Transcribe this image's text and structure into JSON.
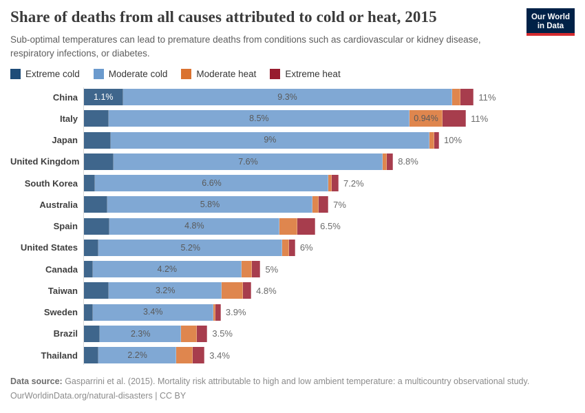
{
  "header": {
    "title": "Share of deaths from all causes attributed to cold or heat, 2015",
    "subtitle": "Sub-optimal temperatures can lead to premature deaths from conditions such as cardiovascular or kidney disease, respiratory infections, or diabetes.",
    "logo": {
      "line1": "Our World",
      "line2": "in Data",
      "bg_color": "#002147",
      "accent_color": "#d42b2f"
    }
  },
  "legend": {
    "items": [
      {
        "label": "Extreme cold",
        "color": "#1e4c78"
      },
      {
        "label": "Moderate cold",
        "color": "#6b9acd"
      },
      {
        "label": "Moderate heat",
        "color": "#da7230"
      },
      {
        "label": "Extreme heat",
        "color": "#981c2e"
      }
    ]
  },
  "chart_data": {
    "type": "bar",
    "orientation": "horizontal",
    "stacked": true,
    "unit": "%",
    "title": "Share of deaths from all causes attributed to cold or heat, 2015",
    "legend_position": "top",
    "grid": false,
    "xlim": [
      0,
      11.5
    ],
    "series_names": [
      "Extreme cold",
      "Moderate cold",
      "Moderate heat",
      "Extreme heat"
    ],
    "series_colors": [
      "#1e4c78",
      "#6b9acd",
      "#da7230",
      "#981c2e"
    ],
    "categories": [
      "China",
      "Italy",
      "Japan",
      "United Kingdom",
      "South Korea",
      "Australia",
      "Spain",
      "United States",
      "Canada",
      "Taiwan",
      "Sweden",
      "Brazil",
      "Thailand"
    ],
    "rows": [
      {
        "country": "China",
        "values": [
          1.1,
          9.3,
          0.25,
          0.37
        ],
        "segment_labels": [
          "1.1%",
          "9.3%",
          "",
          ""
        ],
        "total_label": "11%"
      },
      {
        "country": "Italy",
        "values": [
          0.7,
          8.5,
          0.94,
          0.66
        ],
        "segment_labels": [
          "",
          "8.5%",
          "0.94%",
          ""
        ],
        "total_label": "11%"
      },
      {
        "country": "Japan",
        "values": [
          0.76,
          9.0,
          0.14,
          0.14
        ],
        "segment_labels": [
          "",
          "9%",
          "",
          ""
        ],
        "total_label": "10%"
      },
      {
        "country": "United Kingdom",
        "values": [
          0.84,
          7.6,
          0.12,
          0.18
        ],
        "segment_labels": [
          "",
          "7.6%",
          "",
          ""
        ],
        "total_label": "8.8%"
      },
      {
        "country": "South Korea",
        "values": [
          0.31,
          6.6,
          0.1,
          0.19
        ],
        "segment_labels": [
          "",
          "6.6%",
          "",
          ""
        ],
        "total_label": "7.2%"
      },
      {
        "country": "Australia",
        "values": [
          0.66,
          5.8,
          0.18,
          0.27
        ],
        "segment_labels": [
          "",
          "5.8%",
          "",
          ""
        ],
        "total_label": "7%"
      },
      {
        "country": "Spain",
        "values": [
          0.72,
          4.8,
          0.52,
          0.5
        ],
        "segment_labels": [
          "",
          "4.8%",
          "",
          ""
        ],
        "total_label": "6.5%"
      },
      {
        "country": "United States",
        "values": [
          0.41,
          5.2,
          0.19,
          0.17
        ],
        "segment_labels": [
          "",
          "5.2%",
          "",
          ""
        ],
        "total_label": "6%"
      },
      {
        "country": "Canada",
        "values": [
          0.25,
          4.2,
          0.29,
          0.25
        ],
        "segment_labels": [
          "",
          "4.2%",
          "",
          ""
        ],
        "total_label": "5%"
      },
      {
        "country": "Taiwan",
        "values": [
          0.7,
          3.2,
          0.6,
          0.23
        ],
        "segment_labels": [
          "",
          "3.2%",
          "",
          ""
        ],
        "total_label": "4.8%"
      },
      {
        "country": "Sweden",
        "values": [
          0.25,
          3.4,
          0.06,
          0.16
        ],
        "segment_labels": [
          "",
          "3.4%",
          "",
          ""
        ],
        "total_label": "3.9%"
      },
      {
        "country": "Brazil",
        "values": [
          0.45,
          2.3,
          0.45,
          0.29
        ],
        "segment_labels": [
          "",
          "2.3%",
          "",
          ""
        ],
        "total_label": "3.5%"
      },
      {
        "country": "Thailand",
        "values": [
          0.41,
          2.2,
          0.47,
          0.33
        ],
        "segment_labels": [
          "",
          "2.2%",
          "",
          ""
        ],
        "total_label": "3.4%"
      }
    ]
  },
  "footer": {
    "datasource_label": "Data source:",
    "datasource_text": " Gasparrini et al. (2015). Mortality risk attributable to high and low ambient temperature: a multicountry observational study.",
    "link_text": "OurWorldinData.org/natural-disasters",
    "license_separator": " | ",
    "license": "CC BY"
  }
}
